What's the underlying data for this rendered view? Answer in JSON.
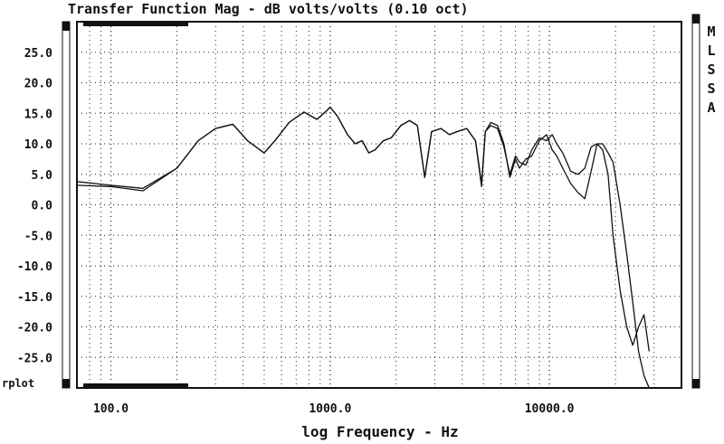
{
  "chart_data": {
    "type": "line",
    "title": "Transfer Function Mag - dB volts/volts (0.10 oct)",
    "xlabel": "log Frequency - Hz",
    "ylabel": "",
    "x_scale": "log",
    "xlim": [
      70,
      40000
    ],
    "ylim": [
      -30,
      30
    ],
    "y_ticks": [
      25.0,
      20.0,
      15.0,
      10.0,
      5.0,
      0.0,
      -5.0,
      -10.0,
      -15.0,
      -20.0,
      -25.0
    ],
    "y_tick_labels": [
      "25.0",
      "20.0",
      "15.0",
      "10.0",
      "5.0",
      "0.0",
      "-5.0",
      "-10.0",
      "-15.0",
      "-20.0",
      "-25.0"
    ],
    "x_ticks": [
      100,
      1000,
      10000
    ],
    "x_tick_labels": [
      "100.0",
      "1000.0",
      "10000.0"
    ],
    "grid": true,
    "side_label": "MLSSA",
    "overlay_label": "rplot",
    "series": [
      {
        "x": [
          70,
          100,
          140,
          200,
          250,
          300,
          360,
          420,
          500,
          560,
          650,
          760,
          870,
          950,
          1000,
          1080,
          1200,
          1300,
          1400,
          1500,
          1600,
          1750,
          1900,
          2100,
          2300,
          2500,
          2700,
          2900,
          3200,
          3500,
          3800,
          4200,
          4600,
          4900,
          5100,
          5400,
          5800,
          6200,
          6600,
          7000,
          7300,
          7800,
          8300,
          9000,
          9700,
          10300,
          10800,
          11500,
          12500,
          13500,
          14500,
          15500,
          16500,
          17500,
          18500,
          19500,
          21000,
          22500,
          24000,
          25500,
          27000,
          28500
        ],
        "y": [
          3.2,
          3.0,
          2.3,
          6.0,
          10.5,
          12.5,
          13.2,
          10.5,
          8.5,
          10.5,
          13.5,
          15.2,
          14.0,
          15.2,
          16.0,
          14.5,
          11.5,
          10.0,
          10.5,
          8.5,
          9.0,
          10.5,
          11.0,
          13.0,
          13.8,
          13.0,
          4.5,
          12.0,
          12.5,
          11.5,
          12.0,
          12.5,
          10.5,
          3.0,
          12.0,
          13.5,
          13.0,
          10.0,
          4.5,
          7.5,
          6.0,
          7.5,
          8.0,
          10.5,
          11.5,
          9.0,
          8.0,
          6.0,
          3.5,
          2.0,
          1.0,
          5.5,
          10.0,
          10.0,
          8.5,
          7.0,
          0.0,
          -8.0,
          -16.0,
          -24.0,
          -28.0,
          -30.0
        ]
      },
      {
        "x": [
          70,
          100,
          140,
          200,
          250,
          300,
          360,
          420,
          500,
          560,
          650,
          760,
          870,
          950,
          1000,
          1080,
          1200,
          1300,
          1400,
          1500,
          1600,
          1750,
          1900,
          2100,
          2300,
          2500,
          2700,
          2900,
          3200,
          3500,
          3800,
          4200,
          4600,
          4900,
          5100,
          5400,
          5800,
          6200,
          6600,
          7000,
          7300,
          7800,
          8300,
          9000,
          9700,
          10300,
          10800,
          11500,
          12500,
          13500,
          14500,
          15500,
          16500,
          17500,
          18500,
          19500,
          21000,
          22500,
          24000,
          25500,
          27000,
          28500
        ],
        "y": [
          3.8,
          3.2,
          2.7,
          6.0,
          10.5,
          12.5,
          13.2,
          10.5,
          8.5,
          10.5,
          13.5,
          15.2,
          14.0,
          15.2,
          16.0,
          14.5,
          11.5,
          10.0,
          10.5,
          8.5,
          9.0,
          10.5,
          11.0,
          13.0,
          13.8,
          13.0,
          4.5,
          12.0,
          12.5,
          11.5,
          12.0,
          12.5,
          10.5,
          3.5,
          12.0,
          13.0,
          12.5,
          9.5,
          5.0,
          8.0,
          7.0,
          6.5,
          9.0,
          11.0,
          10.5,
          11.5,
          10.0,
          8.5,
          5.5,
          5.0,
          6.0,
          9.5,
          10.0,
          9.0,
          5.0,
          -5.0,
          -14.0,
          -20.0,
          -23.0,
          -20.0,
          -18.0,
          -24.0
        ]
      }
    ]
  }
}
